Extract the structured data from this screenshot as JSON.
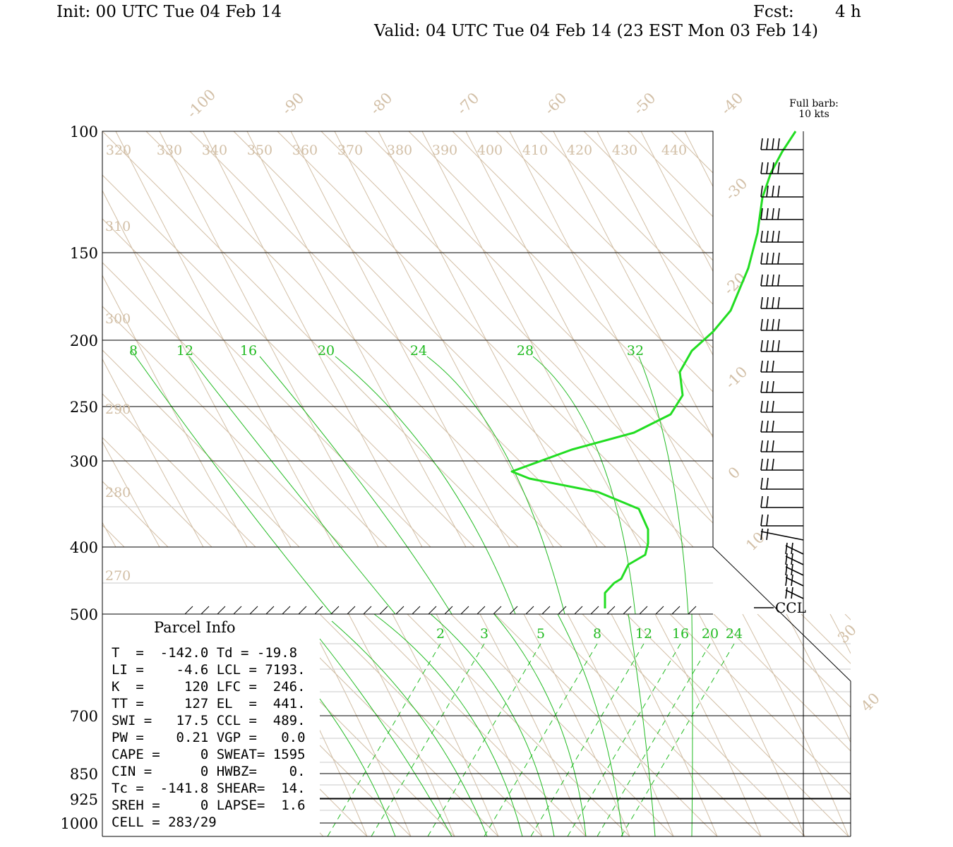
{
  "header": {
    "init": "Init: 00 UTC Tue 04 Feb 14",
    "fcst_label": "Fcst:",
    "fcst_value": "4 h",
    "valid": "Valid: 04 UTC Tue 04 Feb 14 (23 EST Mon 03 Feb 14)"
  },
  "barb_legend": {
    "line1": "Full barb:",
    "line2": "10 kts"
  },
  "parcel": {
    "title": "Parcel Info",
    "rows": [
      "T  =  -142.0 Td = -19.8",
      "LI =    -4.6 LCL = 7193.",
      "K  =     120 LFC =  246.",
      "TT =     127 EL  =  441.",
      "SWI =   17.5 CCL =  489.",
      "PW =    0.21 VGP =   0.0",
      "CAPE =     0 SWEAT= 1595",
      "CIN =      0 HWBZ=    0.",
      "Tc =  -141.8 SHEAR=  14.",
      "SREH =     0 LAPSE=  1.6",
      "CELL = 283/29"
    ]
  },
  "ccl_label": "CCL",
  "colors": {
    "sounding": "#22dd22",
    "mixing": "#22bb22",
    "isotherm": "#d2bfa6",
    "frame": "#000000"
  },
  "chart_data": {
    "type": "line",
    "title": "",
    "yaxis": "pressure (mb)",
    "pressure_ticks": [
      100,
      150,
      200,
      250,
      300,
      400,
      500,
      700,
      850,
      925,
      1000
    ],
    "isotherm_labels": [
      "-100",
      "-90",
      "-80",
      "-70",
      "-60",
      "-50",
      "-40",
      "-30",
      "-20",
      "-10",
      "0",
      "10",
      "30",
      "40"
    ],
    "theta_top_labels": [
      "320",
      "330",
      "340",
      "350",
      "360",
      "370",
      "380",
      "390",
      "400",
      "410",
      "420",
      "430",
      "440"
    ],
    "theta_left_labels": [
      "310",
      "300",
      "290",
      "280",
      "270"
    ],
    "mixing_ratio_top_labels": [
      "8",
      "12",
      "16",
      "20",
      "24",
      "28",
      "32"
    ],
    "mixing_ratio_lower_labels": [
      "2",
      "3",
      "5",
      "8",
      "12",
      "16",
      "20",
      "24"
    ],
    "series": [
      {
        "points": [
          [
            100,
            -39
          ],
          [
            112,
            -42
          ],
          [
            125,
            -44
          ],
          [
            140,
            -45
          ],
          [
            160,
            -46
          ],
          [
            180,
            -48
          ],
          [
            195,
            -49
          ],
          [
            205,
            -51
          ],
          [
            220,
            -53
          ],
          [
            240,
            -54
          ],
          [
            260,
            -57
          ],
          [
            280,
            -63
          ],
          [
            295,
            -70
          ],
          [
            310,
            -80
          ],
          [
            330,
            -67
          ],
          [
            355,
            -60
          ],
          [
            380,
            -56
          ],
          [
            400,
            -55
          ],
          [
            420,
            -57
          ],
          [
            440,
            -58
          ],
          [
            470,
            -59
          ],
          [
            500,
            -59
          ]
        ]
      }
    ]
  }
}
